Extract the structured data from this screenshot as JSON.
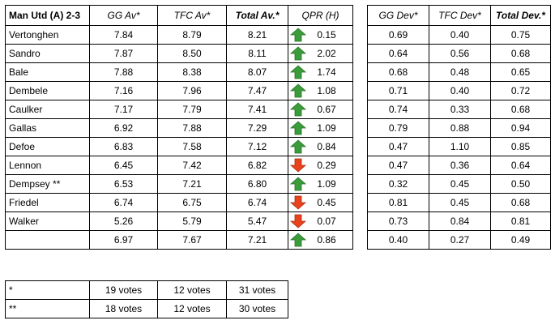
{
  "main_table": {
    "headers": {
      "match": "Man Utd (A) 2-3",
      "gg_av": "GG Av*",
      "tfc_av": "TFC Av*",
      "total_av": "Total Av.*",
      "qpr": "QPR (H)"
    },
    "rows": [
      {
        "player": "Vertonghen",
        "gg": "7.84",
        "tfc": "8.79",
        "total": "8.21",
        "dir": "up",
        "qpr": "0.15"
      },
      {
        "player": "Sandro",
        "gg": "7.87",
        "tfc": "8.50",
        "total": "8.11",
        "dir": "up",
        "qpr": "2.02"
      },
      {
        "player": "Bale",
        "gg": "7.88",
        "tfc": "8.38",
        "total": "8.07",
        "dir": "up",
        "qpr": "1.74"
      },
      {
        "player": "Dembele",
        "gg": "7.16",
        "tfc": "7.96",
        "total": "7.47",
        "dir": "up",
        "qpr": "1.08"
      },
      {
        "player": "Caulker",
        "gg": "7.17",
        "tfc": "7.79",
        "total": "7.41",
        "dir": "up",
        "qpr": "0.67"
      },
      {
        "player": "Gallas",
        "gg": "6.92",
        "tfc": "7.88",
        "total": "7.29",
        "dir": "up",
        "qpr": "1.09"
      },
      {
        "player": "Defoe",
        "gg": "6.83",
        "tfc": "7.58",
        "total": "7.12",
        "dir": "up",
        "qpr": "0.84"
      },
      {
        "player": "Lennon",
        "gg": "6.45",
        "tfc": "7.42",
        "total": "6.82",
        "dir": "down",
        "qpr": "0.29"
      },
      {
        "player": "Dempsey **",
        "gg": "6.53",
        "tfc": "7.21",
        "total": "6.80",
        "dir": "up",
        "qpr": "1.09"
      },
      {
        "player": "Friedel",
        "gg": "6.74",
        "tfc": "6.75",
        "total": "6.74",
        "dir": "down",
        "qpr": "0.45"
      },
      {
        "player": "Walker",
        "gg": "5.26",
        "tfc": "5.79",
        "total": "5.47",
        "dir": "down",
        "qpr": "0.07"
      }
    ],
    "average_row": {
      "gg": "6.97",
      "tfc": "7.67",
      "total": "7.21",
      "dir": "up",
      "qpr": "0.86"
    }
  },
  "dev_table": {
    "headers": {
      "gg_dev": "GG Dev*",
      "tfc_dev": "TFC Dev*",
      "total_dev": "Total Dev.*"
    },
    "rows": [
      {
        "gg": "0.69",
        "tfc": "0.40",
        "total": "0.75"
      },
      {
        "gg": "0.64",
        "tfc": "0.56",
        "total": "0.68"
      },
      {
        "gg": "0.68",
        "tfc": "0.48",
        "total": "0.65"
      },
      {
        "gg": "0.71",
        "tfc": "0.40",
        "total": "0.72"
      },
      {
        "gg": "0.74",
        "tfc": "0.33",
        "total": "0.68"
      },
      {
        "gg": "0.79",
        "tfc": "0.88",
        "total": "0.94"
      },
      {
        "gg": "0.47",
        "tfc": "1.10",
        "total": "0.85"
      },
      {
        "gg": "0.47",
        "tfc": "0.36",
        "total": "0.64"
      },
      {
        "gg": "0.32",
        "tfc": "0.45",
        "total": "0.50"
      },
      {
        "gg": "0.81",
        "tfc": "0.45",
        "total": "0.68"
      },
      {
        "gg": "0.73",
        "tfc": "0.84",
        "total": "0.81"
      }
    ],
    "average_row": {
      "gg": "0.40",
      "tfc": "0.27",
      "total": "0.49"
    }
  },
  "votes_table": {
    "rows": [
      {
        "key": "*",
        "gg": "19 votes",
        "tfc": "12 votes",
        "total": "31 votes"
      },
      {
        "key": "**",
        "gg": "18 votes",
        "tfc": "12 votes",
        "total": "30 votes"
      }
    ]
  },
  "icons": {
    "up": "green-up-arrow-icon",
    "down": "red-down-arrow-icon"
  },
  "colors": {
    "up_arrow": "#3a9d3a",
    "down_arrow": "#e8431c",
    "border": "#000000"
  }
}
